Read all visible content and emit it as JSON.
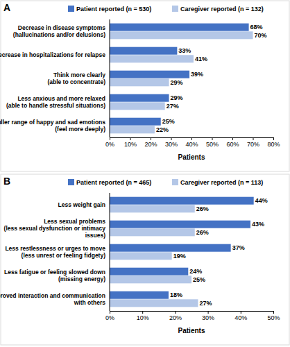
{
  "chart_data": [
    {
      "type": "bar",
      "orientation": "horizontal",
      "title": "A",
      "x_label": "Patients",
      "categories": [
        "Decrease in disease symptoms\n(hallucinations and/or delusions)",
        "Decrease in hospitalizations for relapse",
        "Think more clearly\n(able to concentrate)",
        "Less anxious and more relaxed\n(able to handle stressful situations)",
        "Fuller range of happy and sad emotions\n(feel more deeply)"
      ],
      "series": [
        {
          "name": "Patient reported (n = 530)",
          "color": "#4472c4",
          "values": [
            68,
            33,
            39,
            29,
            25
          ],
          "value_labels": [
            "68%",
            "33%",
            "39%",
            "29%",
            "25%"
          ]
        },
        {
          "name": "Caregiver reported (n = 132)",
          "color": "#b4c7e7",
          "values": [
            70,
            41,
            29,
            27,
            22
          ],
          "value_labels": [
            "70%",
            "41%",
            "29%",
            "27%",
            "22%"
          ]
        }
      ],
      "xlim": [
        0,
        80
      ],
      "xticks": [
        {
          "value": 0,
          "label": "0%"
        },
        {
          "value": 10,
          "label": "10%"
        },
        {
          "value": 20,
          "label": "20%"
        },
        {
          "value": 30,
          "label": "30%"
        },
        {
          "value": 40,
          "label": "40%"
        },
        {
          "value": 50,
          "label": "50%"
        },
        {
          "value": 60,
          "label": "60%"
        },
        {
          "value": 70,
          "label": "70%"
        },
        {
          "value": 80,
          "label": "80%"
        }
      ],
      "data_labels": true,
      "legend": "top"
    },
    {
      "type": "bar",
      "orientation": "horizontal",
      "title": "B",
      "x_label": "Patients",
      "categories": [
        "Less weight gain",
        "Less sexual problems\n(less sexual dysfunction or intimacy\nissues)",
        "Less restlessness or urges to move\n(less unrest or feeling fidgety)",
        "Less fatigue or feeling slowed down\n(missing energy)",
        "Improved interaction and communication\nwith others"
      ],
      "series": [
        {
          "name": "Patient reported (n = 465)",
          "color": "#4472c4",
          "values": [
            44,
            43,
            37,
            24,
            18
          ],
          "value_labels": [
            "44%",
            "43%",
            "37%",
            "24%",
            "18%"
          ]
        },
        {
          "name": "Caregiver reported (n = 113)",
          "color": "#b4c7e7",
          "values": [
            26,
            26,
            19,
            25,
            27
          ],
          "value_labels": [
            "26%",
            "26%",
            "19%",
            "25%",
            "27%"
          ]
        }
      ],
      "xlim": [
        0,
        50
      ],
      "xticks": [
        {
          "value": 0,
          "label": "0%"
        },
        {
          "value": 10,
          "label": "10%"
        },
        {
          "value": 20,
          "label": "20%"
        },
        {
          "value": 30,
          "label": "30%"
        },
        {
          "value": 40,
          "label": "40%"
        },
        {
          "value": 50,
          "label": "50%"
        }
      ],
      "data_labels": true,
      "legend": "top"
    }
  ]
}
